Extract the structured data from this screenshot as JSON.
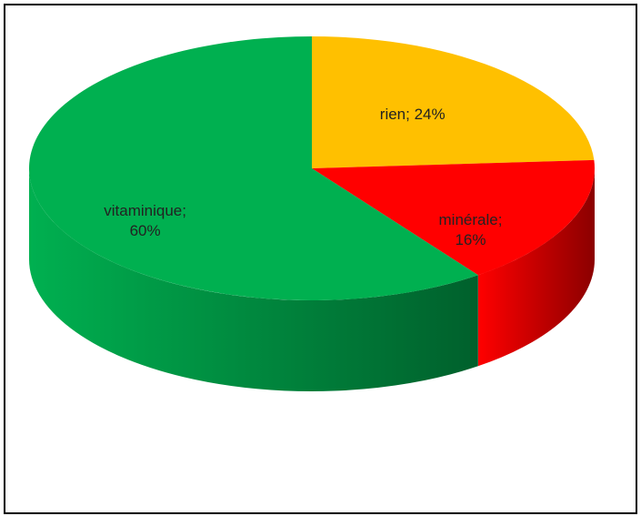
{
  "chart_data": {
    "type": "pie3d",
    "values": [
      24,
      16,
      60
    ],
    "value_labels": [
      "rien; 24%",
      "minérale; 16%",
      "vitaminique; 60%"
    ],
    "colors": [
      "#FFC000",
      "#FF0000",
      "#00B050"
    ],
    "side_colors": [
      "#B38600",
      "#8B0000",
      "#00602C"
    ]
  }
}
